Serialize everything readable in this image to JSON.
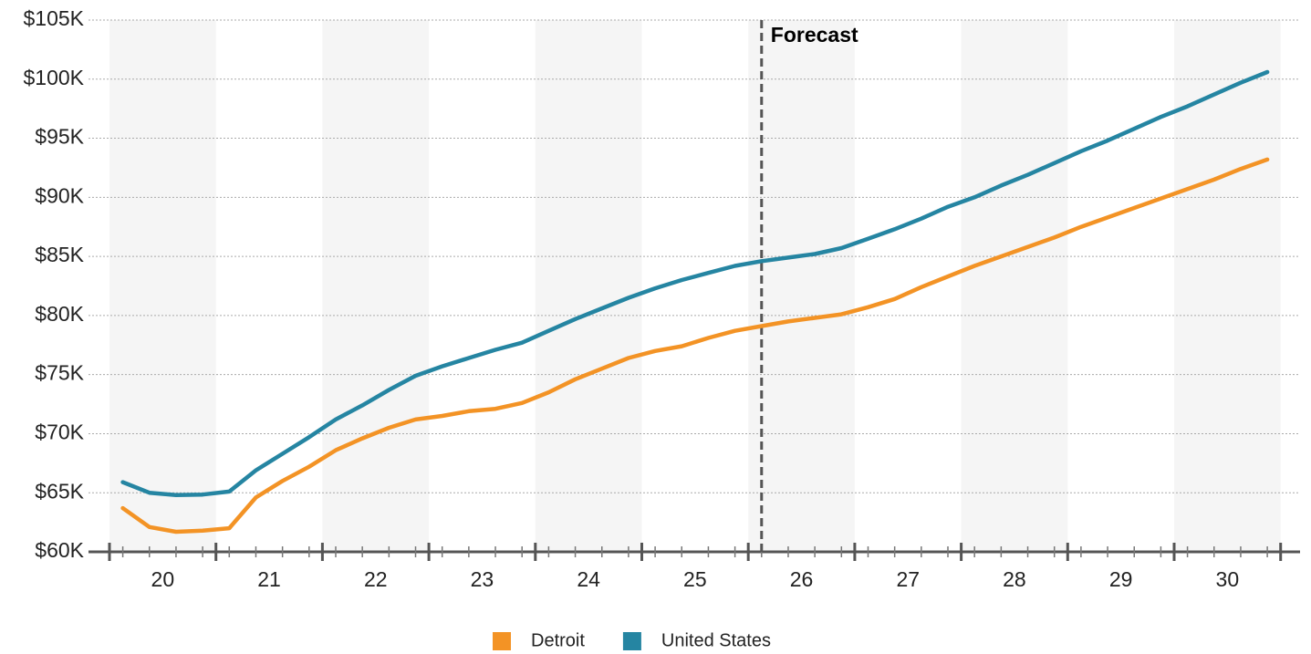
{
  "chart_data": {
    "type": "line",
    "x": [
      20.125,
      20.375,
      20.625,
      20.875,
      21.125,
      21.375,
      21.625,
      21.875,
      22.125,
      22.375,
      22.625,
      22.875,
      23.125,
      23.375,
      23.625,
      23.875,
      24.125,
      24.375,
      24.625,
      24.875,
      25.125,
      25.375,
      25.625,
      25.875,
      26.125,
      26.375,
      26.625,
      26.875,
      27.125,
      27.375,
      27.625,
      27.875,
      28.125,
      28.375,
      28.625,
      28.875,
      29.125,
      29.375,
      29.625,
      29.875,
      30.125,
      30.375,
      30.625,
      30.875
    ],
    "xlim": [
      20,
      31
    ],
    "xticks": [
      {
        "value": 20.5,
        "label": "20"
      },
      {
        "value": 21.5,
        "label": "21"
      },
      {
        "value": 22.5,
        "label": "22"
      },
      {
        "value": 23.5,
        "label": "23"
      },
      {
        "value": 24.5,
        "label": "24"
      },
      {
        "value": 25.5,
        "label": "25"
      },
      {
        "value": 26.5,
        "label": "26"
      },
      {
        "value": 27.5,
        "label": "27"
      },
      {
        "value": 28.5,
        "label": "28"
      },
      {
        "value": 29.5,
        "label": "29"
      },
      {
        "value": 30.5,
        "label": "30"
      }
    ],
    "ylim": [
      60,
      105
    ],
    "yticks": [
      {
        "value": 60,
        "label": "$60K"
      },
      {
        "value": 65,
        "label": "$65K"
      },
      {
        "value": 70,
        "label": "$70K"
      },
      {
        "value": 75,
        "label": "$75K"
      },
      {
        "value": 80,
        "label": "$80K"
      },
      {
        "value": 85,
        "label": "$85K"
      },
      {
        "value": 90,
        "label": "$90K"
      },
      {
        "value": 95,
        "label": "$95K"
      },
      {
        "value": 100,
        "label": "$100K"
      },
      {
        "value": 105,
        "label": "$105K"
      }
    ],
    "grid": true,
    "legend": "bottom",
    "annotation": {
      "x": 26.125,
      "label": "Forecast"
    },
    "series": [
      {
        "name": "Detroit",
        "color": "#f39325",
        "values": [
          63.7,
          62.1,
          61.7,
          61.8,
          62.0,
          64.6,
          66.0,
          67.2,
          68.6,
          69.6,
          70.5,
          71.2,
          71.5,
          71.9,
          72.1,
          72.6,
          73.5,
          74.6,
          75.5,
          76.4,
          77.0,
          77.4,
          78.1,
          78.7,
          79.1,
          79.5,
          79.8,
          80.1,
          80.7,
          81.4,
          82.4,
          83.3,
          84.2,
          85.0,
          85.8,
          86.6,
          87.5,
          88.3,
          89.1,
          89.9,
          90.7,
          91.5,
          92.4,
          93.2
        ]
      },
      {
        "name": "United States",
        "color": "#2585a2",
        "values": [
          65.9,
          65.0,
          64.8,
          64.85,
          65.1,
          66.9,
          68.3,
          69.7,
          71.2,
          72.4,
          73.7,
          74.9,
          75.7,
          76.4,
          77.1,
          77.7,
          78.7,
          79.7,
          80.6,
          81.5,
          82.3,
          83.0,
          83.6,
          84.2,
          84.6,
          84.9,
          85.2,
          85.7,
          86.5,
          87.3,
          88.2,
          89.2,
          90.0,
          91.0,
          91.9,
          92.9,
          93.9,
          94.8,
          95.8,
          96.8,
          97.7,
          98.7,
          99.7,
          100.6
        ]
      }
    ]
  }
}
